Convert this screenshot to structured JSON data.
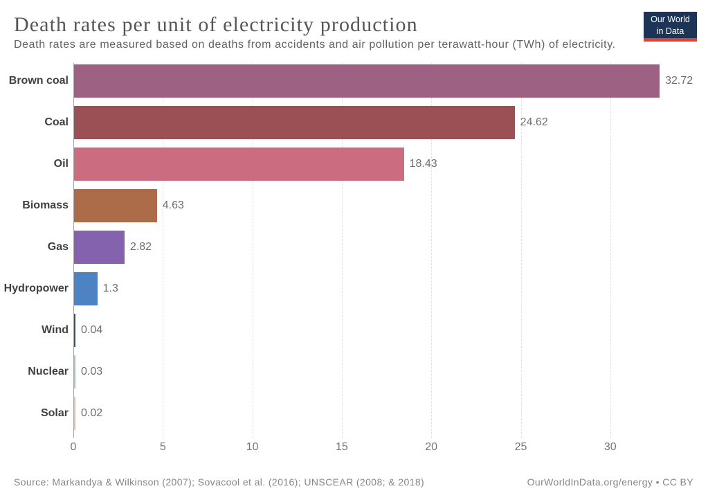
{
  "header": {
    "title": "Death rates per unit of electricity production",
    "subtitle": "Death rates are measured based on deaths from accidents and air pollution per terawatt-hour (TWh) of electricity.",
    "logo_line1": "Our World",
    "logo_line2": "in Data",
    "logo_bg_color": "#1c3456",
    "logo_accent_color": "#dc4432"
  },
  "chart_data": {
    "type": "bar",
    "orientation": "horizontal",
    "title": "Death rates per unit of electricity production",
    "categories": [
      "Brown coal",
      "Coal",
      "Oil",
      "Biomass",
      "Gas",
      "Hydropower",
      "Wind",
      "Nuclear",
      "Solar"
    ],
    "values": [
      32.72,
      24.62,
      18.43,
      4.63,
      2.82,
      1.3,
      0.04,
      0.03,
      0.02
    ],
    "value_labels": [
      "32.72",
      "24.62",
      "18.43",
      "4.63",
      "2.82",
      "1.3",
      "0.04",
      "0.03",
      "0.02"
    ],
    "bar_colors": [
      "#9d6184",
      "#9b5056",
      "#cb6c80",
      "#ac6b49",
      "#8462ae",
      "#4d82c3",
      "#3d4e63",
      "#a3c7bd",
      "#eebdb0"
    ],
    "x_ticks": [
      0,
      5,
      10,
      15,
      20,
      25,
      30
    ],
    "xlim": [
      0,
      34.7
    ],
    "grid": true,
    "legend": false
  },
  "footer": {
    "source": "Source: Markandya & Wilkinson (2007); Sovacool et al. (2016); UNSCEAR (2008; & 2018)",
    "link": "OurWorldInData.org/energy • CC BY"
  }
}
